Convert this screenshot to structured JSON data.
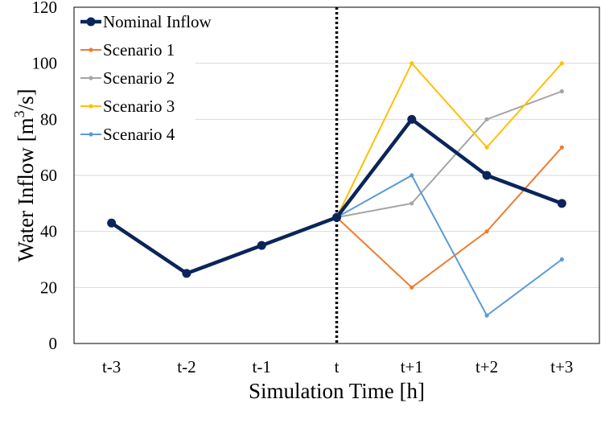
{
  "chart_data": {
    "type": "line",
    "title": "",
    "xlabel": "Simulation Time [h]",
    "ylabel_main": "Water Inflow [m",
    "ylabel_sup": "3",
    "ylabel_tail": "/s]",
    "categories": [
      "t-3",
      "t-2",
      "t-1",
      "t",
      "t+1",
      "t+2",
      "t+3"
    ],
    "ylim": [
      0,
      120
    ],
    "yticks": [
      0,
      20,
      40,
      60,
      80,
      100,
      120
    ],
    "grid": "horizontal",
    "divider_at": "t",
    "legend_position": "top-left",
    "series": [
      {
        "name": "Nominal Inflow",
        "color": "#0b2559",
        "values": [
          43,
          25,
          35,
          45,
          80,
          60,
          50
        ]
      },
      {
        "name": "Scenario 1",
        "color": "#ed7d31",
        "values": [
          null,
          null,
          null,
          45,
          20,
          40,
          70
        ]
      },
      {
        "name": "Scenario 2",
        "color": "#a5a5a5",
        "values": [
          null,
          null,
          null,
          45,
          50,
          80,
          90
        ]
      },
      {
        "name": "Scenario 3",
        "color": "#ffc000",
        "values": [
          null,
          null,
          null,
          45,
          100,
          70,
          100
        ]
      },
      {
        "name": "Scenario 4",
        "color": "#5b9bd5",
        "values": [
          null,
          null,
          null,
          45,
          60,
          10,
          30
        ]
      }
    ]
  }
}
